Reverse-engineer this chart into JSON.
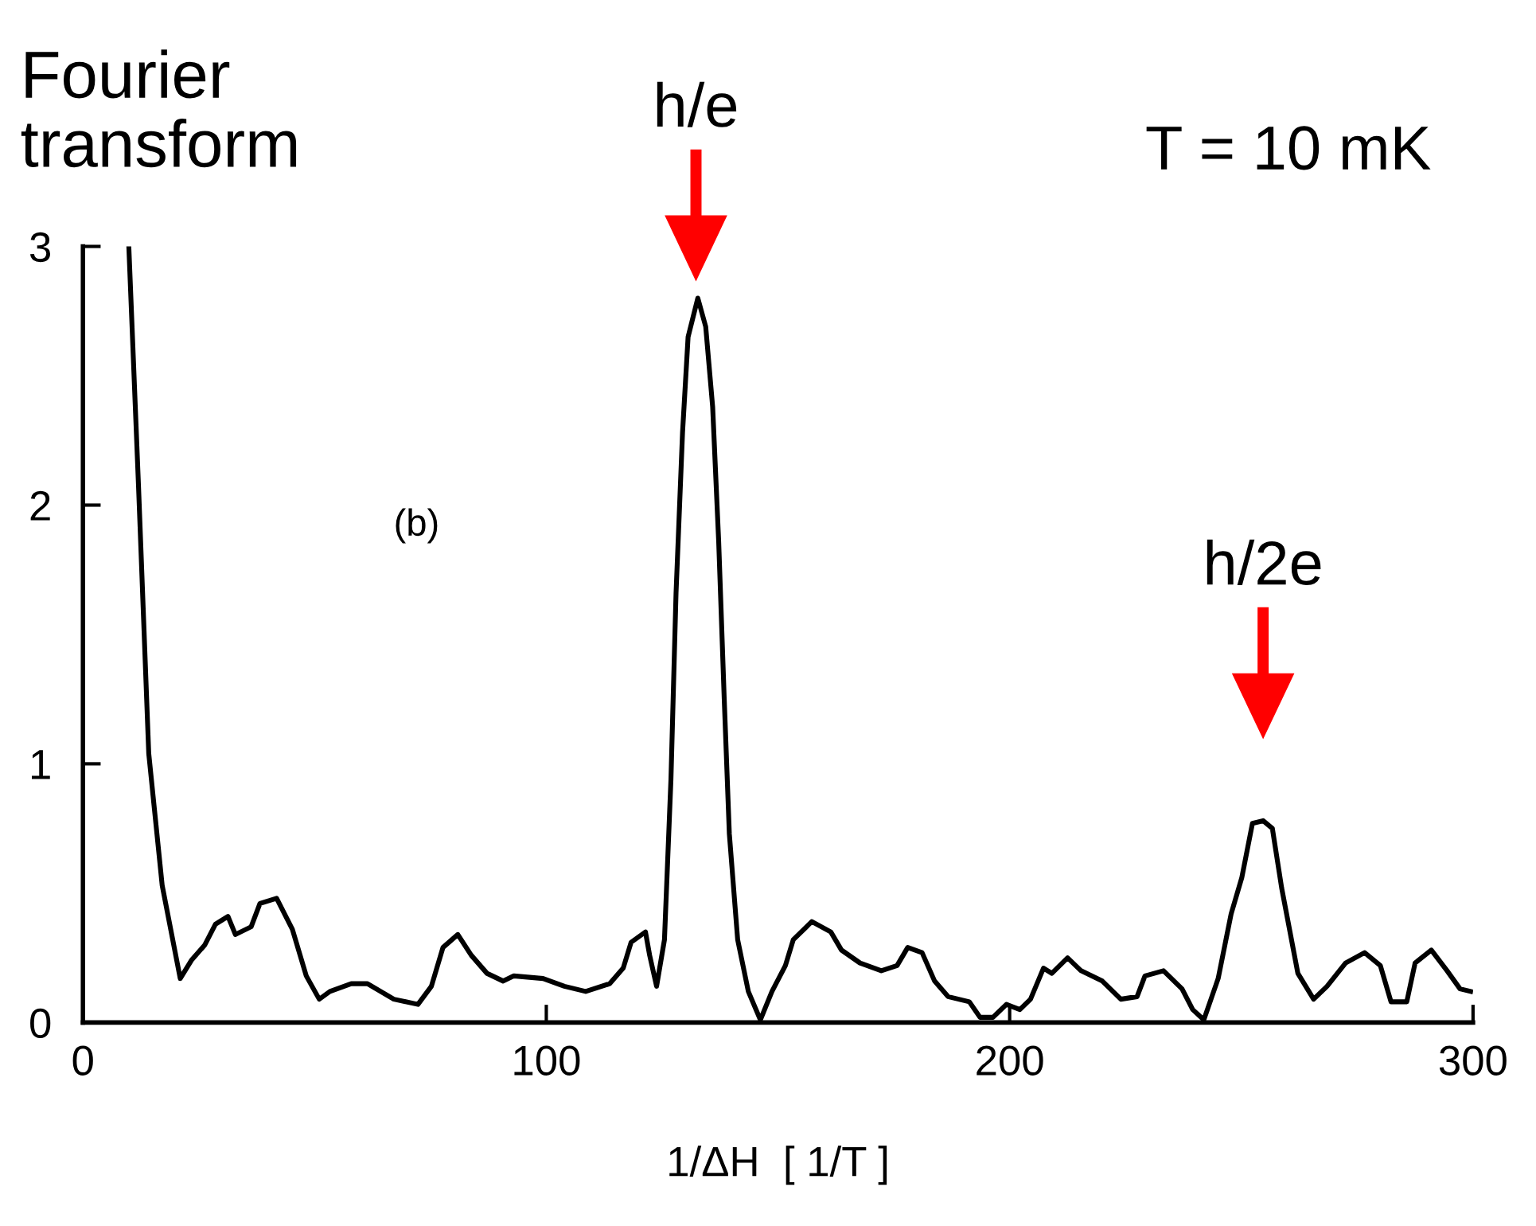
{
  "chart_data": {
    "type": "line",
    "xlabel": "1/ΔH  [ 1/T ]",
    "ylabel": "Fourier\ntransform",
    "xlim": [
      0,
      300
    ],
    "ylim": [
      0,
      3
    ],
    "xticks": [
      0,
      100,
      200,
      300
    ],
    "yticks": [
      0,
      1,
      2,
      3
    ],
    "grid": false,
    "legend": false,
    "marker": "none",
    "line_style": "solid",
    "series": [
      {
        "color": "#000000",
        "x": [
          9.9,
          12,
          14.2,
          17.1,
          21,
          23.4,
          26.3,
          28.6,
          31.3,
          32.9,
          36.3,
          38.2,
          41.8,
          45.2,
          48.2,
          51,
          53.3,
          57.9,
          61.4,
          67.1,
          72.3,
          75.2,
          77.7,
          80.9,
          83.8,
          87.2,
          90.7,
          93,
          99.3,
          103.9,
          108.5,
          113.7,
          116.6,
          118.3,
          121.4,
          122.3,
          123.8,
          125.5,
          126.9,
          128,
          129.4,
          130.6,
          132.7,
          134.4,
          135.9,
          137.2,
          138.4,
          139.5,
          141.3,
          143.6,
          146.2,
          148.7,
          151.6,
          153.3,
          157.3,
          161.4,
          163.7,
          167.7,
          172.3,
          175.7,
          178,
          181.1,
          183.8,
          186.7,
          191.3,
          193.6,
          196.4,
          199.3,
          202.2,
          204.5,
          207.3,
          209.1,
          212.5,
          215.4,
          220,
          224,
          227.5,
          229.2,
          233.2,
          237.2,
          239.5,
          241.9,
          245,
          247.8,
          250.1,
          252.4,
          254.7,
          256.7,
          258.7,
          262.2,
          265.6,
          268.5,
          272.5,
          276.6,
          280,
          282.3,
          285.7,
          287.5,
          291,
          294.4,
          297.2,
          299.5
        ],
        "values": [
          3.0,
          2.07,
          1.04,
          0.53,
          0.17,
          0.24,
          0.3,
          0.38,
          0.41,
          0.34,
          0.37,
          0.46,
          0.48,
          0.36,
          0.18,
          0.09,
          0.12,
          0.15,
          0.15,
          0.09,
          0.07,
          0.14,
          0.29,
          0.34,
          0.26,
          0.19,
          0.16,
          0.18,
          0.17,
          0.14,
          0.12,
          0.15,
          0.21,
          0.31,
          0.35,
          0.26,
          0.14,
          0.32,
          0.94,
          1.66,
          2.28,
          2.65,
          2.8,
          2.69,
          2.38,
          1.86,
          1.25,
          0.73,
          0.32,
          0.12,
          0.01,
          0.12,
          0.22,
          0.32,
          0.39,
          0.35,
          0.28,
          0.23,
          0.2,
          0.22,
          0.29,
          0.27,
          0.16,
          0.1,
          0.08,
          0.02,
          0.02,
          0.07,
          0.05,
          0.09,
          0.21,
          0.19,
          0.25,
          0.2,
          0.16,
          0.09,
          0.1,
          0.18,
          0.2,
          0.13,
          0.05,
          0.01,
          0.17,
          0.42,
          0.56,
          0.77,
          0.78,
          0.75,
          0.52,
          0.19,
          0.09,
          0.14,
          0.23,
          0.27,
          0.22,
          0.08,
          0.08,
          0.23,
          0.28,
          0.2,
          0.13,
          0.12
        ]
      }
    ],
    "annotations": [
      "h/e",
      "h/2e",
      "T = 10 mK",
      "(b)"
    ]
  }
}
